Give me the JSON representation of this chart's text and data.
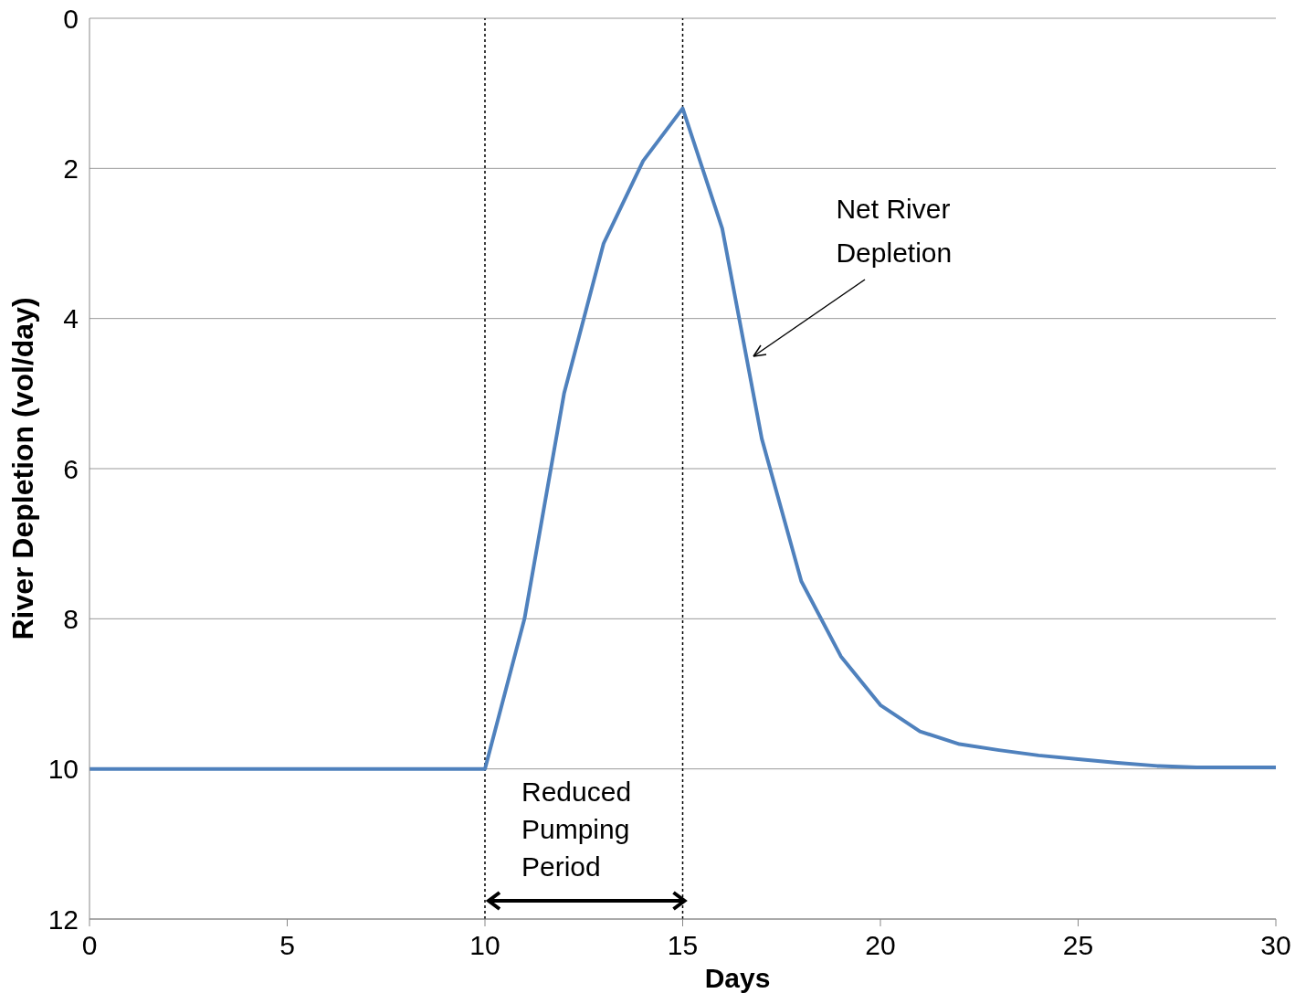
{
  "chart_data": {
    "type": "line",
    "xlabel": "Days",
    "ylabel": "River Depletion (vol/day)",
    "x": [
      0,
      1,
      2,
      3,
      4,
      5,
      6,
      7,
      8,
      9,
      10,
      11,
      12,
      13,
      14,
      15,
      16,
      17,
      18,
      19,
      20,
      21,
      22,
      23,
      24,
      25,
      26,
      27,
      28,
      29,
      30
    ],
    "series": [
      {
        "color": "#4f81bd",
        "values": [
          10,
          10,
          10,
          10,
          10,
          10,
          10,
          10,
          10,
          10,
          10,
          8.0,
          5.0,
          3.0,
          1.9,
          1.2,
          2.8,
          5.6,
          7.5,
          8.5,
          9.15,
          9.5,
          9.67,
          9.75,
          9.82,
          9.87,
          9.92,
          9.96,
          9.98,
          9.98,
          9.98
        ]
      }
    ],
    "xlim": [
      0,
      30
    ],
    "xticks": [
      0,
      5,
      10,
      15,
      20,
      25,
      30
    ],
    "ylim": [
      12,
      0
    ],
    "yticks": [
      0,
      2,
      4,
      6,
      8,
      10,
      12
    ],
    "grid": "y",
    "marker": "none",
    "line_style": "solid",
    "ref_lines": [
      {
        "axis": "x",
        "value": 10,
        "color": "#000000",
        "line_style": "dotted"
      },
      {
        "axis": "x",
        "value": 15,
        "color": "#000000",
        "line_style": "dotted"
      }
    ],
    "annotations": [
      "Net River Depletion",
      "Reduced Pumping Period"
    ]
  }
}
